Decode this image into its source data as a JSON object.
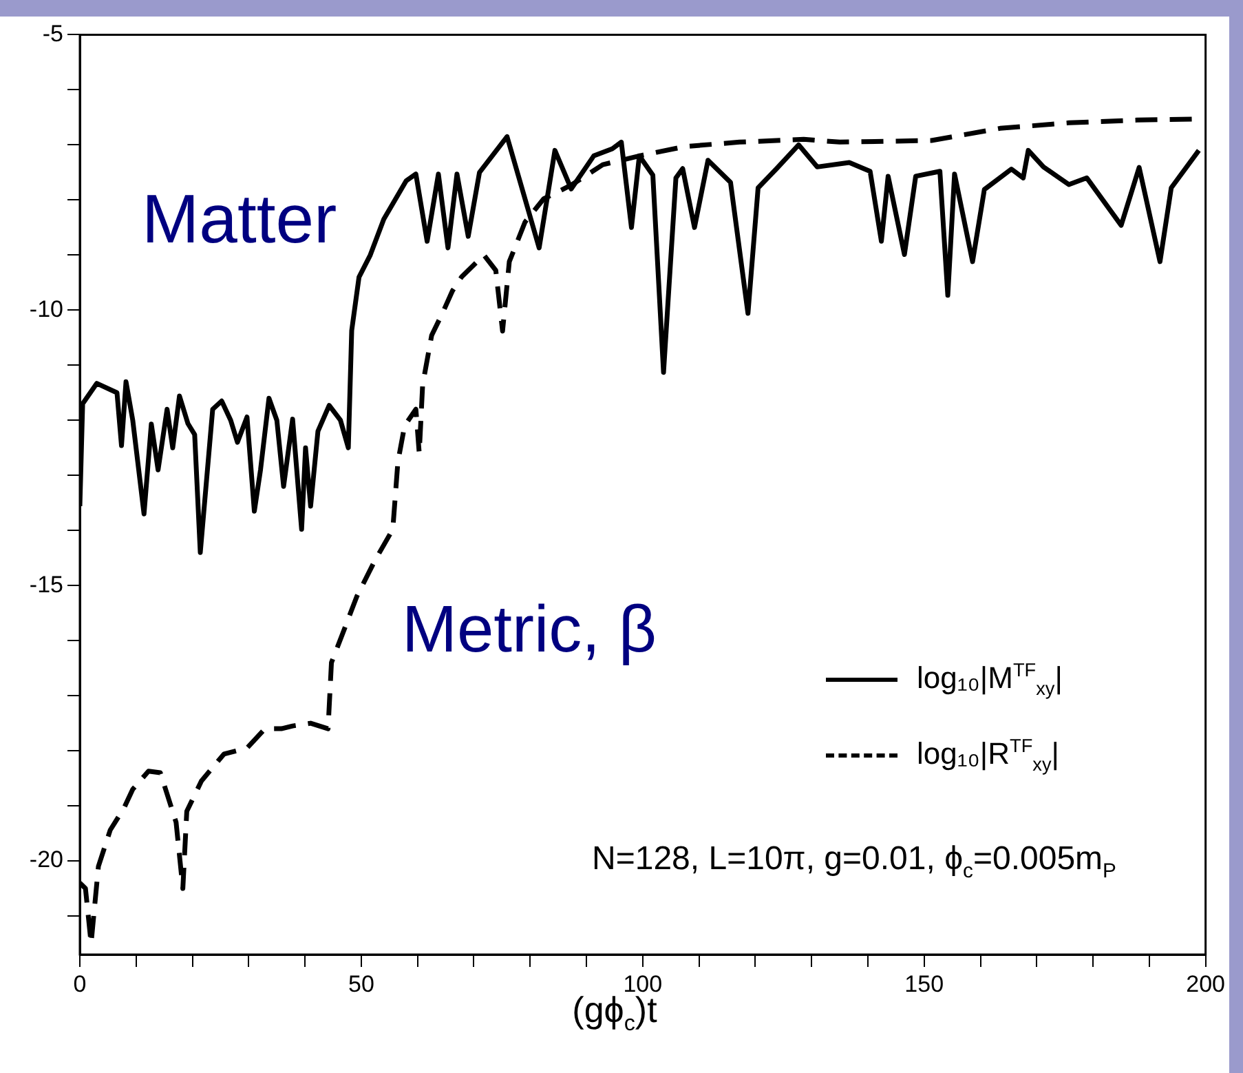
{
  "chart_data": {
    "type": "line",
    "xlabel": "(gϕ$_{c}$)t",
    "annotations": [
      "Matter",
      "Metric, β",
      "N=128, L=10π, g=0.01, ϕ$_{c}$=0.005m$_{P}$"
    ],
    "xlim": [
      0,
      200
    ],
    "xticks": [
      0,
      {
        "value": 10,
        "label": null
      },
      {
        "value": 20,
        "label": null
      },
      {
        "value": 30,
        "label": null
      },
      {
        "value": 40,
        "label": null
      },
      50,
      {
        "value": 60,
        "label": null
      },
      {
        "value": 70,
        "label": null
      },
      {
        "value": 80,
        "label": null
      },
      {
        "value": 90,
        "label": null
      },
      100,
      {
        "value": 110,
        "label": null
      },
      {
        "value": 120,
        "label": null
      },
      {
        "value": 130,
        "label": null
      },
      {
        "value": 140,
        "label": null
      },
      150,
      {
        "value": 160,
        "label": null
      },
      {
        "value": 170,
        "label": null
      },
      {
        "value": 180,
        "label": null
      },
      {
        "value": 190,
        "label": null
      },
      200
    ],
    "ylim": [
      -21.7,
      -5
    ],
    "yticks": [
      {
        "value": -21,
        "label": null
      },
      -20,
      {
        "value": -19,
        "label": null
      },
      {
        "value": -18,
        "label": null
      },
      {
        "value": -17,
        "label": null
      },
      {
        "value": -16,
        "label": null
      },
      -15,
      {
        "value": -14,
        "label": null
      },
      {
        "value": -13,
        "label": null
      },
      {
        "value": -12,
        "label": null
      },
      {
        "value": -11,
        "label": null
      },
      -10,
      {
        "value": -9,
        "label": null
      },
      {
        "value": -8,
        "label": null
      },
      {
        "value": -7,
        "label": null
      },
      {
        "value": -6,
        "label": null
      },
      -5
    ],
    "grid": false,
    "legend": "bottom right",
    "series": [
      {
        "name": "log₁₀|M$^{TF}$$_{xy}$|",
        "color": "#000000",
        "line_style": "solid",
        "x": [
          0,
          0.5,
          3,
          6.6,
          7.4,
          8.2,
          9.4,
          11.4,
          12.7,
          13.9,
          15.5,
          16.5,
          17.7,
          19.2,
          20.4,
          21.4,
          23.6,
          25.2,
          26.8,
          28,
          29.7,
          31,
          32.1,
          33.6,
          35,
          36.2,
          37.8,
          39.4,
          40.1,
          41,
          42.3,
          44.3,
          46.3,
          47.7,
          48.3,
          49.6,
          51.6,
          54,
          56,
          58,
          59.7,
          61.7,
          63.7,
          65.4,
          67,
          69,
          71,
          75.9,
          81.6,
          84.4,
          87.3,
          91.3,
          94.6,
          96.2,
          98,
          99.4,
          101.8,
          103.7,
          105.9,
          107.1,
          109.2,
          111.6,
          115.6,
          118.7,
          120.5,
          123.8,
          127.7,
          131,
          136.7,
          140.4,
          142.4,
          143.6,
          146.5,
          148.5,
          152.8,
          154.2,
          155.4,
          158.6,
          160.7,
          165.5,
          167.6,
          168.5,
          171.2,
          175.7,
          178.9,
          185,
          188.2,
          191.9,
          193.9,
          198.8
        ],
        "values": [
          -13.56,
          -11.7,
          -11.33,
          -11.5,
          -12.46,
          -11.3,
          -12.0,
          -13.7,
          -12.07,
          -12.9,
          -11.8,
          -12.5,
          -11.56,
          -12.06,
          -12.26,
          -14.4,
          -11.8,
          -11.65,
          -12.0,
          -12.4,
          -11.94,
          -13.65,
          -12.9,
          -11.6,
          -12.0,
          -13.2,
          -11.98,
          -13.98,
          -12.5,
          -13.56,
          -12.2,
          -11.73,
          -12.0,
          -12.5,
          -10.37,
          -9.4,
          -9.0,
          -8.35,
          -8.0,
          -7.65,
          -7.53,
          -8.75,
          -7.53,
          -8.87,
          -7.53,
          -8.66,
          -7.5,
          -6.85,
          -8.87,
          -7.1,
          -7.8,
          -7.2,
          -7.07,
          -6.95,
          -8.5,
          -7.2,
          -7.55,
          -11.13,
          -7.6,
          -7.43,
          -8.5,
          -7.28,
          -7.68,
          -10.06,
          -7.78,
          -7.43,
          -7.0,
          -7.4,
          -7.32,
          -7.48,
          -8.75,
          -7.57,
          -8.99,
          -7.57,
          -7.48,
          -9.73,
          -7.53,
          -9.12,
          -7.81,
          -7.44,
          -7.6,
          -7.1,
          -7.4,
          -7.72,
          -7.6,
          -8.46,
          -7.41,
          -9.12,
          -7.78,
          -7.1
        ]
      },
      {
        "name": "log₁₀|R$^{TF}$$_{xy}$|",
        "color": "#000000",
        "line_style": "dashed",
        "x": [
          0,
          1,
          2,
          3.3,
          5.4,
          7.8,
          9.4,
          12.2,
          14.3,
          17.1,
          18.3,
          19,
          21.6,
          25.6,
          29.7,
          32.9,
          35.8,
          37.8,
          41,
          44.1,
          44.7,
          46.7,
          49.2,
          52.4,
          55.6,
          56.5,
          57.7,
          59.7,
          60.3,
          60.9,
          62.5,
          64.4,
          66.2,
          67.8,
          71.8,
          73.9,
          75.1,
          76.3,
          79.1,
          82.4,
          87.3,
          92.9,
          99.4,
          107.5,
          117.2,
          128.6,
          135,
          151.3,
          163.5,
          175.7,
          187.8,
          198.8
        ],
        "values": [
          -20.4,
          -20.5,
          -21.5,
          -20.1,
          -19.44,
          -19.05,
          -18.7,
          -18.37,
          -18.4,
          -19.3,
          -20.5,
          -19.1,
          -18.55,
          -18.06,
          -17.95,
          -17.6,
          -17.6,
          -17.55,
          -17.5,
          -17.6,
          -16.4,
          -15.87,
          -15.2,
          -14.55,
          -13.98,
          -12.76,
          -12.1,
          -11.8,
          -12.6,
          -11.36,
          -10.46,
          -10.06,
          -9.65,
          -9.4,
          -9.0,
          -9.28,
          -10.38,
          -9.12,
          -8.4,
          -7.98,
          -7.73,
          -7.36,
          -7.2,
          -7.03,
          -6.95,
          -6.9,
          -6.95,
          -6.92,
          -6.7,
          -6.6,
          -6.55,
          -6.53
        ]
      }
    ]
  }
}
